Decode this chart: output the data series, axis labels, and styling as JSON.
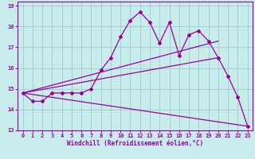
{
  "xlabel": "Windchill (Refroidissement éolien,°C)",
  "bg_color": "#c8ecec",
  "grid_color": "#b8dcdc",
  "line_color": "#990099",
  "xlim": [
    -0.5,
    23.5
  ],
  "ylim": [
    13,
    19.2
  ],
  "xticks": [
    0,
    1,
    2,
    3,
    4,
    5,
    6,
    7,
    8,
    9,
    10,
    11,
    12,
    13,
    14,
    15,
    16,
    17,
    18,
    19,
    20,
    21,
    22,
    23
  ],
  "yticks": [
    13,
    14,
    15,
    16,
    17,
    18,
    19
  ],
  "series1_x": [
    0,
    1,
    2,
    3,
    4,
    5,
    6,
    7,
    8,
    9,
    10,
    11,
    12,
    13,
    14,
    15,
    16,
    17,
    18,
    19,
    20,
    21,
    22,
    23
  ],
  "series1_y": [
    14.8,
    14.4,
    14.4,
    14.8,
    14.8,
    14.8,
    14.8,
    15.0,
    15.9,
    16.5,
    17.5,
    18.3,
    18.7,
    18.2,
    17.2,
    18.2,
    16.6,
    17.6,
    17.8,
    17.3,
    16.5,
    15.6,
    14.6,
    13.2
  ],
  "series2_x": [
    0,
    23
  ],
  "series2_y": [
    14.8,
    13.2
  ],
  "series3_x": [
    0,
    20
  ],
  "series3_y": [
    14.8,
    16.5
  ],
  "series4_x": [
    0,
    20
  ],
  "series4_y": [
    14.8,
    17.3
  ]
}
